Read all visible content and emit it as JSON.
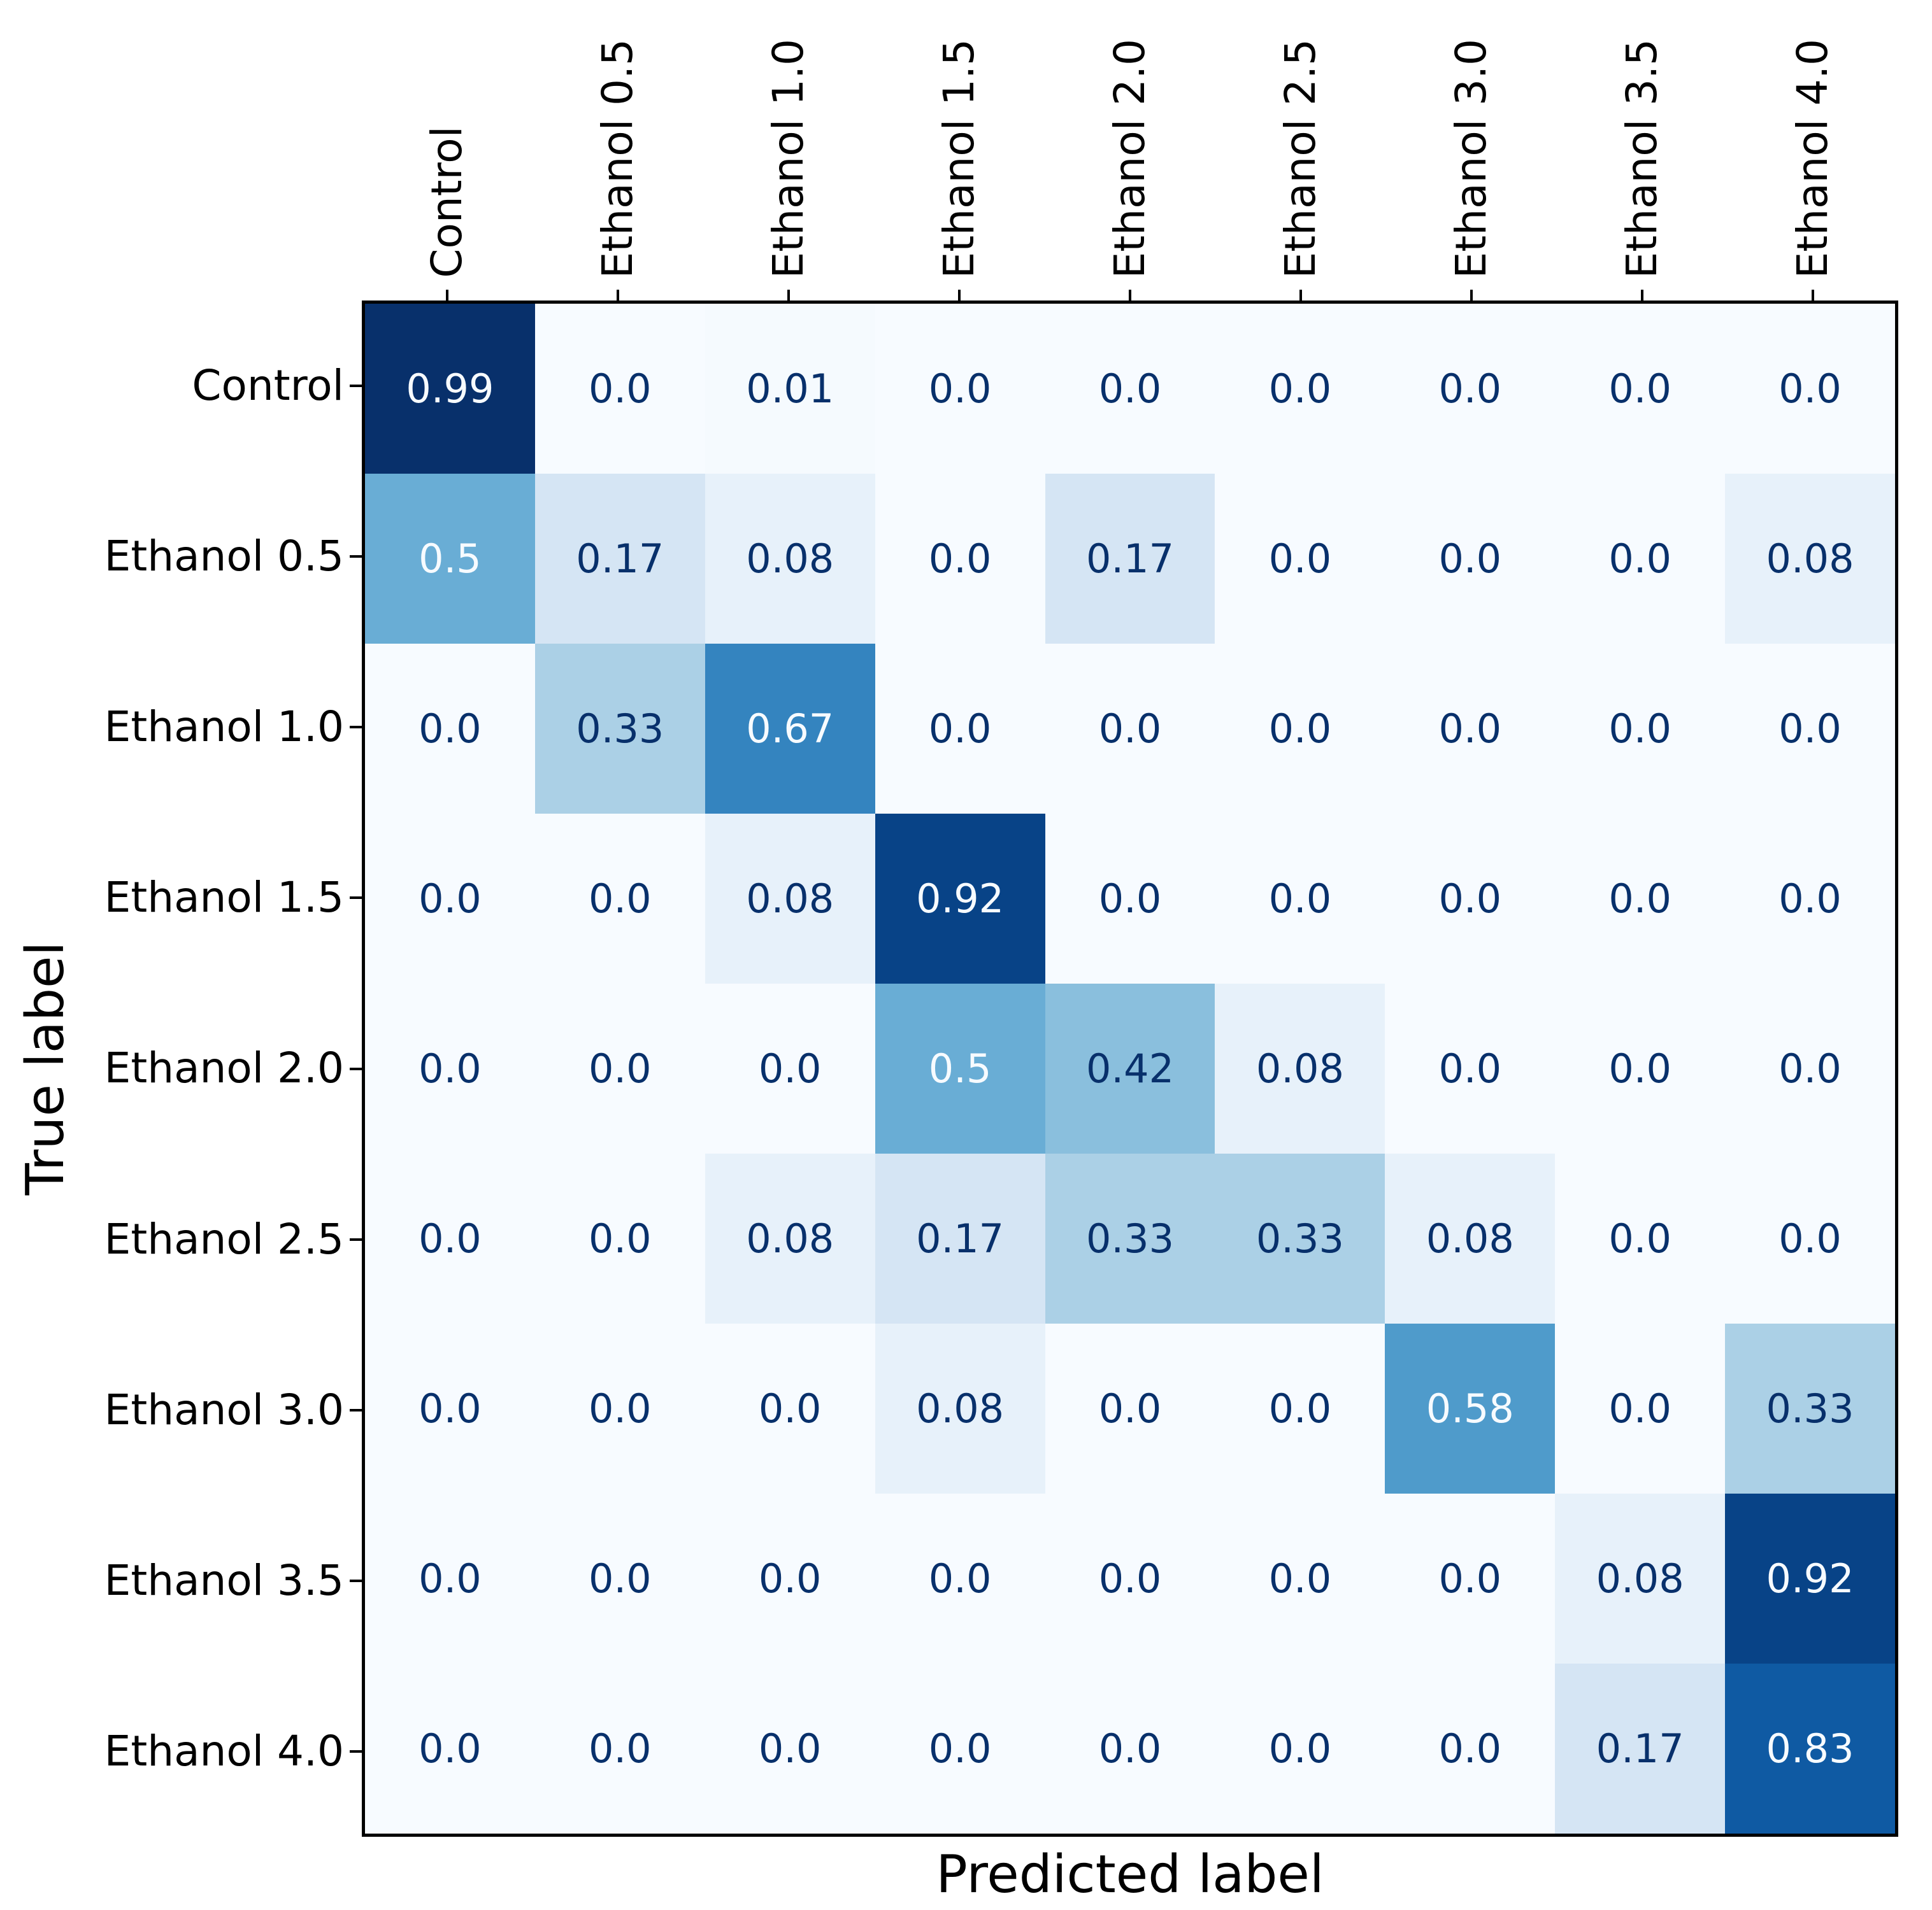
{
  "chart_data": {
    "type": "heatmap",
    "title": "",
    "xlabel": "Predicted label",
    "ylabel": "True label",
    "categories": [
      "Control",
      "Ethanol 0.5",
      "Ethanol 1.0",
      "Ethanol 1.5",
      "Ethanol 2.0",
      "Ethanol 2.5",
      "Ethanol 3.0",
      "Ethanol 3.5",
      "Ethanol 4.0"
    ],
    "values": [
      [
        0.99,
        0.0,
        0.01,
        0.0,
        0.0,
        0.0,
        0.0,
        0.0,
        0.0
      ],
      [
        0.5,
        0.17,
        0.08,
        0.0,
        0.17,
        0.0,
        0.0,
        0.0,
        0.08
      ],
      [
        0.0,
        0.33,
        0.67,
        0.0,
        0.0,
        0.0,
        0.0,
        0.0,
        0.0
      ],
      [
        0.0,
        0.0,
        0.08,
        0.92,
        0.0,
        0.0,
        0.0,
        0.0,
        0.0
      ],
      [
        0.0,
        0.0,
        0.0,
        0.5,
        0.42,
        0.08,
        0.0,
        0.0,
        0.0
      ],
      [
        0.0,
        0.0,
        0.08,
        0.17,
        0.33,
        0.33,
        0.08,
        0.0,
        0.0
      ],
      [
        0.0,
        0.0,
        0.0,
        0.08,
        0.0,
        0.0,
        0.58,
        0.0,
        0.33
      ],
      [
        0.0,
        0.0,
        0.0,
        0.0,
        0.0,
        0.0,
        0.0,
        0.08,
        0.92
      ],
      [
        0.0,
        0.0,
        0.0,
        0.0,
        0.0,
        0.0,
        0.0,
        0.17,
        0.83
      ]
    ],
    "cell_labels": [
      [
        "0.99",
        "0.0",
        "0.01",
        "0.0",
        "0.0",
        "0.0",
        "0.0",
        "0.0",
        "0.0"
      ],
      [
        "0.5",
        "0.17",
        "0.08",
        "0.0",
        "0.17",
        "0.0",
        "0.0",
        "0.0",
        "0.08"
      ],
      [
        "0.0",
        "0.33",
        "0.67",
        "0.0",
        "0.0",
        "0.0",
        "0.0",
        "0.0",
        "0.0"
      ],
      [
        "0.0",
        "0.0",
        "0.08",
        "0.92",
        "0.0",
        "0.0",
        "0.0",
        "0.0",
        "0.0"
      ],
      [
        "0.0",
        "0.0",
        "0.0",
        "0.5",
        "0.42",
        "0.08",
        "0.0",
        "0.0",
        "0.0"
      ],
      [
        "0.0",
        "0.0",
        "0.08",
        "0.17",
        "0.33",
        "0.33",
        "0.08",
        "0.0",
        "0.0"
      ],
      [
        "0.0",
        "0.0",
        "0.0",
        "0.08",
        "0.0",
        "0.0",
        "0.58",
        "0.0",
        "0.33"
      ],
      [
        "0.0",
        "0.0",
        "0.0",
        "0.0",
        "0.0",
        "0.0",
        "0.0",
        "0.08",
        "0.92"
      ],
      [
        "0.0",
        "0.0",
        "0.0",
        "0.0",
        "0.0",
        "0.0",
        "0.0",
        "0.17",
        "0.83"
      ]
    ],
    "vmin": 0.0,
    "vmax": 0.99,
    "colormap": "Blues",
    "colormap_stops": [
      "#f7fbff",
      "#deebf7",
      "#c6dbef",
      "#9ecae1",
      "#6baed6",
      "#4292c6",
      "#2171b5",
      "#08519c",
      "#08306b"
    ],
    "text_color_light": "#f7fbff",
    "text_color_dark": "#08306b",
    "spine_color": "#000000",
    "grid": "off",
    "legend": "none"
  }
}
